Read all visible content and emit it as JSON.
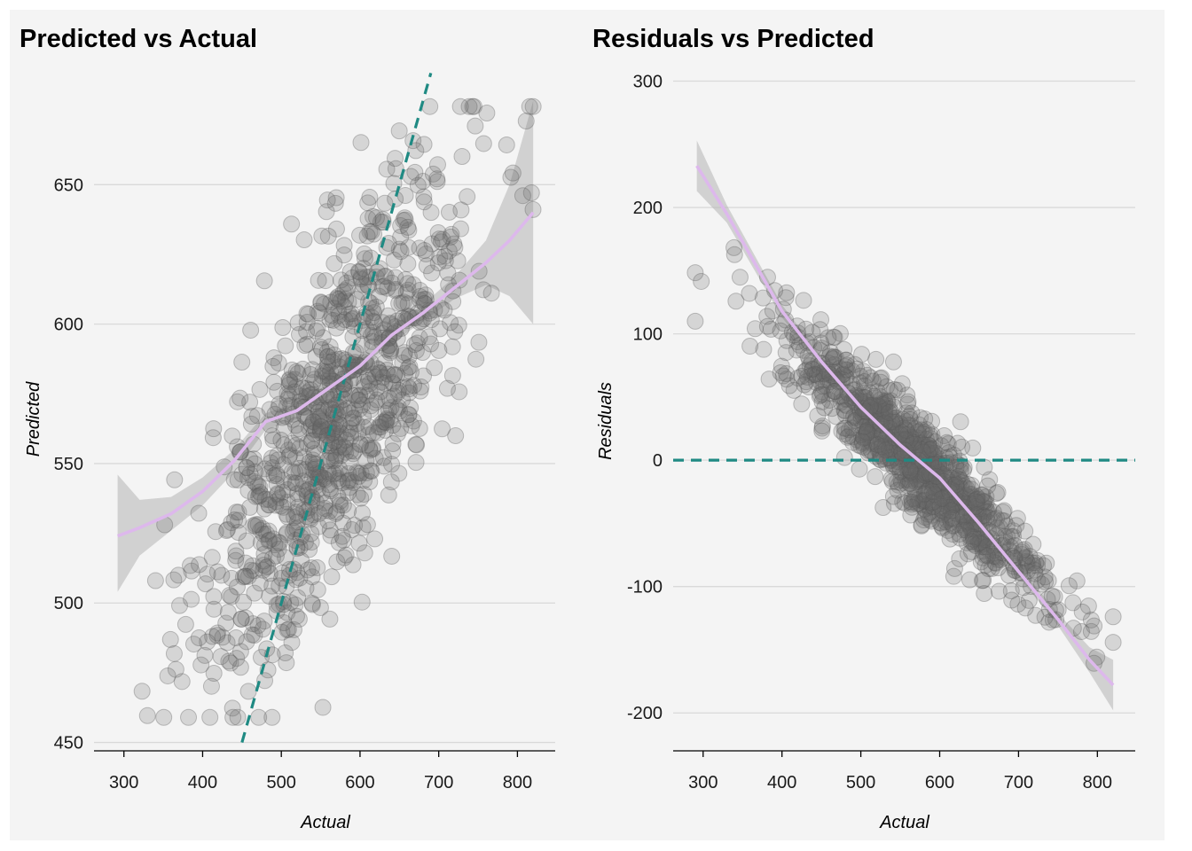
{
  "chart_data": [
    {
      "type": "scatter",
      "title": "Predicted vs Actual",
      "xlabel": "Actual",
      "ylabel": "Predicted",
      "xlim": [
        262,
        848
      ],
      "ylim": [
        447,
        693
      ],
      "xticks": [
        300,
        400,
        500,
        600,
        700,
        800
      ],
      "yticks": [
        450,
        500,
        550,
        600,
        650
      ],
      "grid": "horizontal",
      "reference_line": {
        "type": "identity",
        "style": "dashed",
        "color": "#1f8a83"
      },
      "smooth": {
        "color": "#ddb8ec",
        "x": [
          292,
          320,
          360,
          400,
          440,
          480,
          520,
          560,
          600,
          640,
          680,
          720,
          760,
          790,
          820
        ],
        "y": [
          524,
          527,
          532,
          540,
          551,
          565,
          569,
          577,
          585,
          596,
          604,
          613,
          622,
          630,
          640
        ],
        "band_lower": [
          504,
          517,
          526,
          535,
          547,
          562,
          566,
          574,
          582,
          593,
          601,
          609,
          614,
          610,
          600
        ],
        "band_upper": [
          546,
          537,
          538,
          545,
          555,
          568,
          572,
          580,
          588,
          599,
          607,
          617,
          630,
          650,
          680
        ]
      },
      "n_points": 1000
    },
    {
      "type": "scatter",
      "title": "Residuals vs Predicted",
      "xlabel": "Actual",
      "ylabel": "Residuals",
      "xlim": [
        262,
        848
      ],
      "ylim": [
        -230,
        313
      ],
      "xticks": [
        300,
        400,
        500,
        600,
        700,
        800
      ],
      "yticks": [
        300,
        200,
        100,
        0,
        -100,
        -200
      ],
      "yticklabels": [
        "300",
        "200",
        "100",
        "0",
        "-100",
        "-200"
      ],
      "grid": "horizontal",
      "reference_line": {
        "type": "zero",
        "style": "dashed",
        "color": "#1f8a83"
      },
      "smooth": {
        "color": "#ddb8ec",
        "x": [
          292,
          330,
          400,
          450,
          500,
          550,
          600,
          650,
          700,
          750,
          790,
          820
        ],
        "y": [
          233,
          195,
          118,
          78,
          42,
          12,
          -14,
          -50,
          -88,
          -126,
          -158,
          -178
        ],
        "band_lower": [
          213,
          188,
          113,
          74,
          38,
          9,
          -17,
          -54,
          -92,
          -131,
          -168,
          -198
        ],
        "band_upper": [
          253,
          202,
          123,
          82,
          46,
          15,
          -11,
          -46,
          -84,
          -121,
          -148,
          -158
        ]
      },
      "n_points": 1000
    }
  ]
}
